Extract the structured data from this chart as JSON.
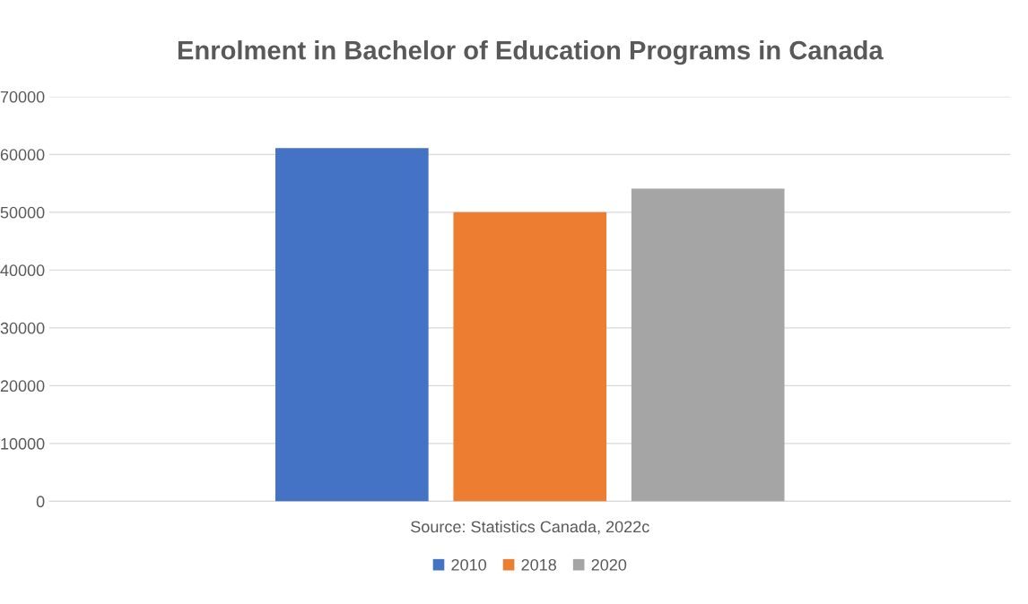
{
  "chart_data": {
    "type": "bar",
    "title": "Enrolment in Bachelor of Education Programs in Canada",
    "xlabel": "Source: Statistics Canada, 2022c",
    "categories": [
      null
    ],
    "series": [
      {
        "name": "2010",
        "color": "#4472c4",
        "values": [
          61100
        ]
      },
      {
        "name": "2018",
        "color": "#ed7d31",
        "values": [
          50000
        ]
      },
      {
        "name": "2020",
        "color": "#a5a5a5",
        "values": [
          54100
        ]
      }
    ],
    "ylim": [
      0,
      70000
    ],
    "yticks": [
      0,
      10000,
      20000,
      30000,
      40000,
      50000,
      60000,
      70000
    ],
    "grid": "y",
    "legend": "bottom"
  }
}
